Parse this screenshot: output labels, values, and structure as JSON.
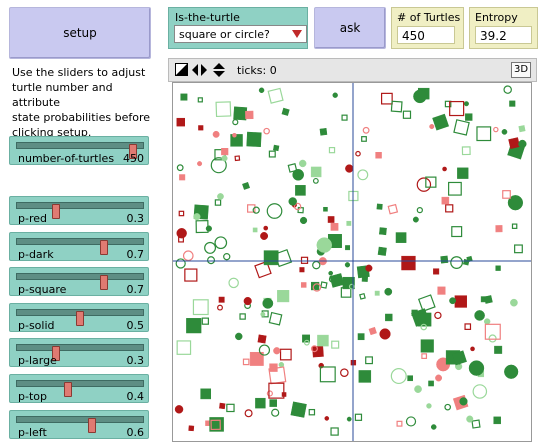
{
  "setup": {
    "label": "setup"
  },
  "ask": {
    "label": "ask"
  },
  "chooser": {
    "label": "Is-the-turtle",
    "value": "square or circle?"
  },
  "monitors": [
    {
      "label": "# of Turtles",
      "value": "450"
    },
    {
      "label": "Entropy",
      "value": "39.2"
    }
  ],
  "info": {
    "line1": "Use the sliders to adjust",
    "line2": "turtle number and attribute",
    "line3": "state probabilities before",
    "line4": "clicking setup."
  },
  "view": {
    "ticks_label": "ticks: 0",
    "btn_3d": "3D"
  },
  "sliders": [
    {
      "label": "number-of-turtles",
      "value": "450",
      "fraction": 0.95
    },
    {
      "label": "p-red",
      "value": "0.3",
      "fraction": 0.3
    },
    {
      "label": "p-dark",
      "value": "0.7",
      "fraction": 0.7
    },
    {
      "label": "p-square",
      "value": "0.7",
      "fraction": 0.7
    },
    {
      "label": "p-solid",
      "value": "0.5",
      "fraction": 0.5
    },
    {
      "label": "p-large",
      "value": "0.3",
      "fraction": 0.3
    },
    {
      "label": "p-top",
      "value": "0.4",
      "fraction": 0.4
    },
    {
      "label": "p-left",
      "value": "0.6",
      "fraction": 0.6
    }
  ],
  "colors": {
    "dark_red": "#b01818",
    "light_red": "#f08080",
    "dark_green": "#2e8b3a",
    "light_green": "#9ad89a",
    "axis": "#2a4a9a"
  }
}
